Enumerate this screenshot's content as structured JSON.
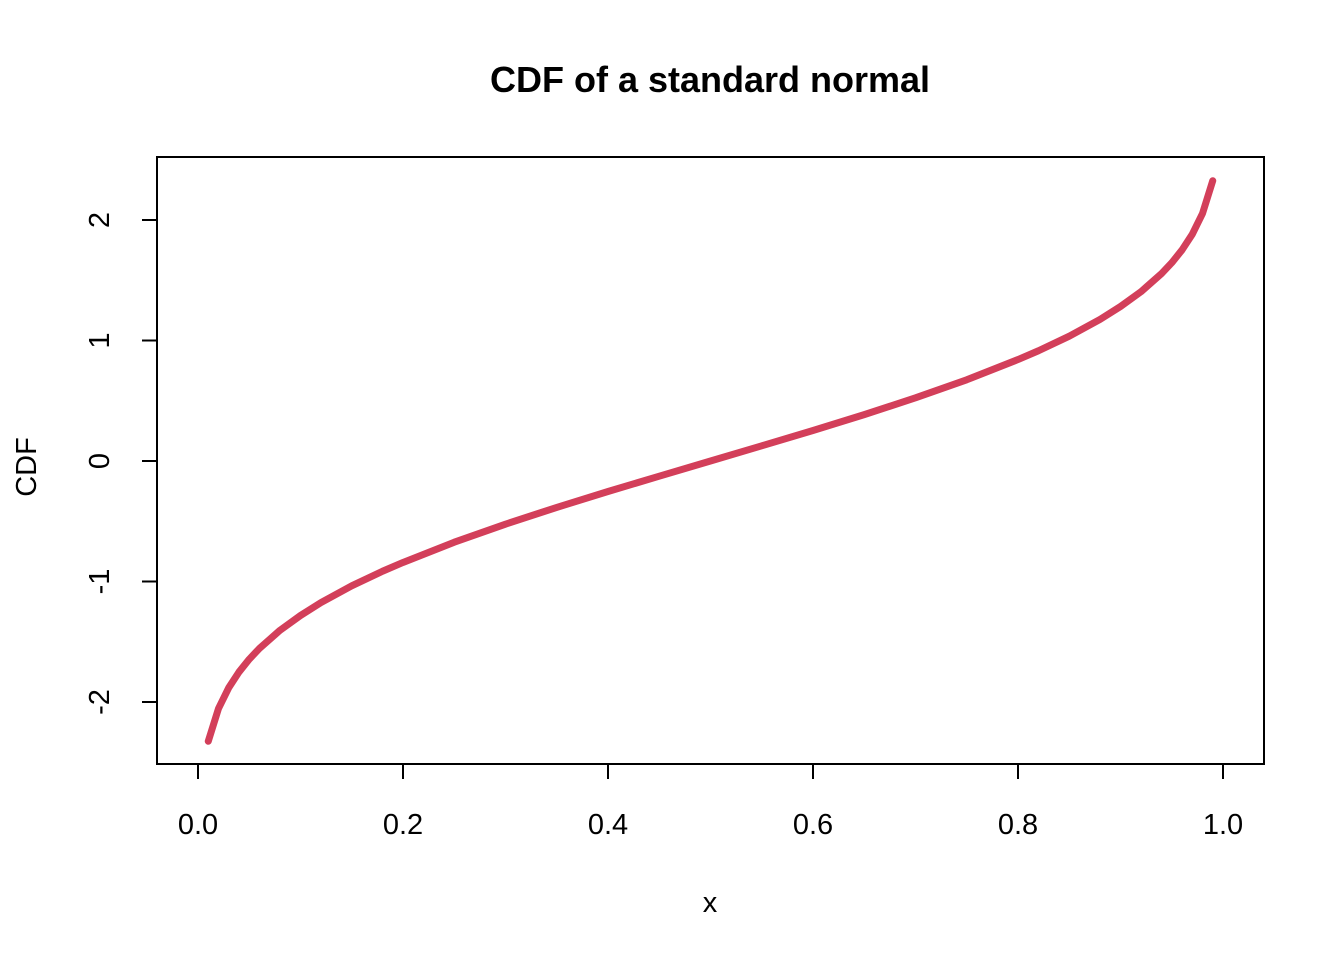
{
  "chart_data": {
    "type": "line",
    "title": "CDF of a standard normal",
    "xlabel": "x",
    "ylabel": "CDF",
    "xlim": [
      0.0,
      1.0
    ],
    "ylim": [
      -2.5,
      2.5
    ],
    "x_ticks": [
      0.0,
      0.2,
      0.4,
      0.6,
      0.8,
      1.0
    ],
    "x_tick_labels": [
      "0.0",
      "0.2",
      "0.4",
      "0.6",
      "0.8",
      "1.0"
    ],
    "y_ticks": [
      -2,
      -1,
      0,
      1,
      2
    ],
    "y_tick_labels": [
      "-2",
      "-1",
      "0",
      "1",
      "2"
    ],
    "grid": false,
    "line_color": "#D33F5A",
    "series": [
      {
        "x": [
          0.01,
          0.02,
          0.03,
          0.04,
          0.05,
          0.06,
          0.08,
          0.1,
          0.12,
          0.15,
          0.18,
          0.2,
          0.25,
          0.3,
          0.35,
          0.4,
          0.45,
          0.5,
          0.55,
          0.6,
          0.65,
          0.7,
          0.75,
          0.8,
          0.82,
          0.85,
          0.88,
          0.9,
          0.92,
          0.94,
          0.95,
          0.96,
          0.97,
          0.98,
          0.99
        ],
        "values": [
          -2.326,
          -2.054,
          -1.881,
          -1.751,
          -1.645,
          -1.555,
          -1.405,
          -1.282,
          -1.175,
          -1.036,
          -0.915,
          -0.842,
          -0.674,
          -0.524,
          -0.385,
          -0.253,
          -0.126,
          0.0,
          0.126,
          0.253,
          0.385,
          0.524,
          0.674,
          0.842,
          0.915,
          1.036,
          1.175,
          1.282,
          1.405,
          1.555,
          1.645,
          1.751,
          1.881,
          2.054,
          2.326
        ]
      }
    ]
  }
}
